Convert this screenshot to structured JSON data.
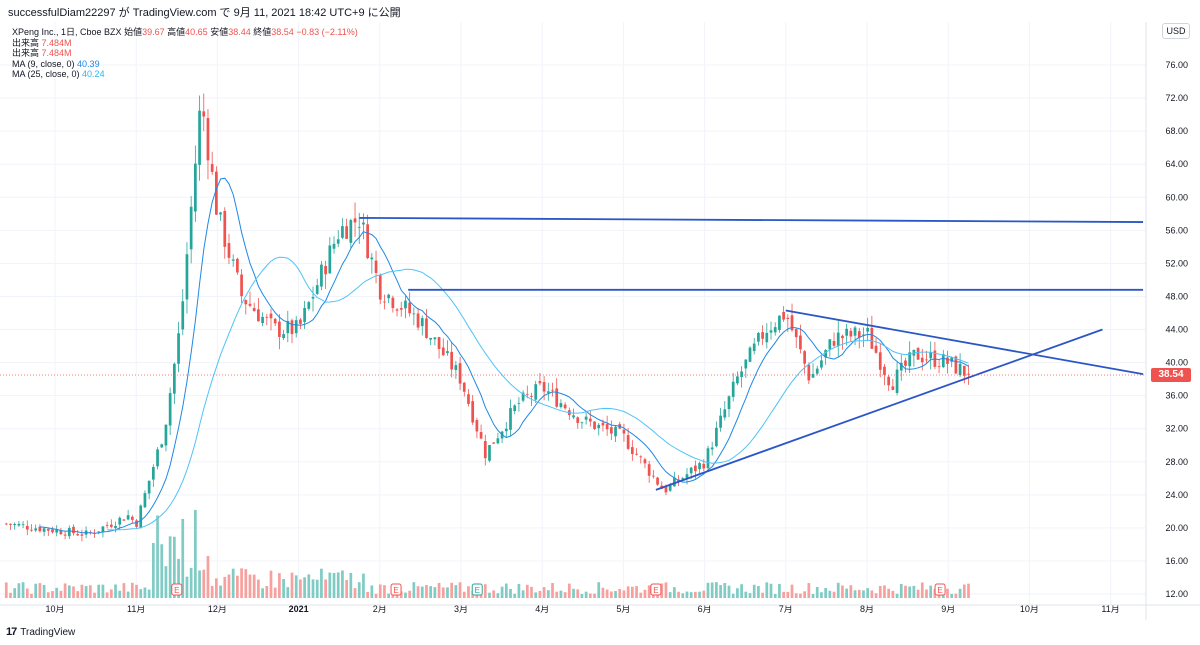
{
  "header": {
    "publish_line": "successfulDiam22297 が TradingView.com で 9月 11, 2021 18:42 UTC+9 に公開"
  },
  "legend": {
    "symbol": "XPeng Inc., 1日, Cboe BZX",
    "open_label": "始値",
    "open": "39.67",
    "high_label": "高値",
    "high": "40.65",
    "low_label": "安値",
    "low": "38.44",
    "close_label": "終値",
    "close": "38.54",
    "change": "−0.83 (−2.11%)",
    "volume_label_1": "出来高",
    "volume_1": "7.484M",
    "volume_label_2": "出来高",
    "volume_2": "7.484M",
    "ma9_label": "MA (9, close, 0)",
    "ma9_value": "40.39",
    "ma25_label": "MA (25, close, 0)",
    "ma25_value": "40.24"
  },
  "currency": "USD",
  "last_price_tag": "38.54",
  "footer": {
    "logo_mark": "17",
    "logo_text": "TradingView"
  },
  "colors": {
    "up": "#26a69a",
    "down": "#ef5350",
    "up_vol": "#80cbc4",
    "down_vol": "#f7a19f",
    "ma9": "#1e88e5",
    "ma25": "#4fc3f7",
    "trendline": "#2a56c6",
    "grid": "#f0f3fa"
  },
  "chart_data": {
    "type": "candlestick",
    "symbol": "XPeng Inc.",
    "interval": "1日",
    "exchange": "Cboe BZX",
    "y_axis_ticks": [
      "76.00",
      "72.00",
      "68.00",
      "64.00",
      "60.00",
      "56.00",
      "52.00",
      "48.00",
      "44.00",
      "40.00",
      "36.00",
      "32.00",
      "28.00",
      "24.00",
      "20.00",
      "16.00",
      "12.00"
    ],
    "ylim": [
      11.5,
      78
    ],
    "x_axis_ticks": [
      "10月",
      "11月",
      "12月",
      "2021",
      "2月",
      "3月",
      "4月",
      "5月",
      "6月",
      "7月",
      "8月",
      "9月",
      "10月",
      "11月"
    ],
    "last_price": 38.54,
    "series": [
      {
        "name": "MA (9, close, 0)",
        "color": "ma9"
      },
      {
        "name": "MA (25, close, 0)",
        "color": "ma25"
      }
    ],
    "price_path_keypoints": [
      {
        "month_index": 0,
        "t": -0.6,
        "price": 20.5
      },
      {
        "month_index": 0,
        "t": 0.4,
        "price": 19.2
      },
      {
        "month_index": 0,
        "t": 0.9,
        "price": 21.5
      },
      {
        "month_index": 1,
        "t": 1.0,
        "price": 20.5
      },
      {
        "month_index": 1,
        "t": 1.35,
        "price": 32.0
      },
      {
        "month_index": 1,
        "t": 1.55,
        "price": 45.0
      },
      {
        "month_index": 1,
        "t": 1.8,
        "price": 72.0
      },
      {
        "month_index": 2,
        "t": 2.0,
        "price": 58.0
      },
      {
        "month_index": 2,
        "t": 2.3,
        "price": 48.0
      },
      {
        "month_index": 2,
        "t": 2.7,
        "price": 44.0
      },
      {
        "month_index": 3,
        "t": 3.0,
        "price": 44.0
      },
      {
        "month_index": 3,
        "t": 3.5,
        "price": 56.0
      },
      {
        "month_index": 3,
        "t": 3.75,
        "price": 57.5
      },
      {
        "month_index": 4,
        "t": 4.0,
        "price": 49.0
      },
      {
        "month_index": 4,
        "t": 4.5,
        "price": 45.0
      },
      {
        "month_index": 5,
        "t": 5.0,
        "price": 38.0
      },
      {
        "month_index": 5,
        "t": 5.3,
        "price": 29.0
      },
      {
        "month_index": 5,
        "t": 5.7,
        "price": 35.0
      },
      {
        "month_index": 6,
        "t": 6.0,
        "price": 37.0
      },
      {
        "month_index": 6,
        "t": 6.5,
        "price": 33.0
      },
      {
        "month_index": 7,
        "t": 7.0,
        "price": 31.0
      },
      {
        "month_index": 7,
        "t": 7.5,
        "price": 24.5
      },
      {
        "month_index": 8,
        "t": 8.0,
        "price": 28.0
      },
      {
        "month_index": 8,
        "t": 8.4,
        "price": 38.0
      },
      {
        "month_index": 8,
        "t": 8.75,
        "price": 44.0
      },
      {
        "month_index": 9,
        "t": 9.0,
        "price": 46.0
      },
      {
        "month_index": 9,
        "t": 9.3,
        "price": 38.0
      },
      {
        "month_index": 9,
        "t": 9.6,
        "price": 43.0
      },
      {
        "month_index": 10,
        "t": 10.0,
        "price": 43.5
      },
      {
        "month_index": 10,
        "t": 10.3,
        "price": 37.5
      },
      {
        "month_index": 10,
        "t": 10.6,
        "price": 41.0
      },
      {
        "month_index": 11,
        "t": 11.0,
        "price": 40.0
      },
      {
        "month_index": 11,
        "t": 11.25,
        "price": 38.54
      }
    ],
    "trendlines": [
      {
        "name": "resistance-upper",
        "from": {
          "t": 3.75,
          "price": 57.5
        },
        "to": {
          "t": 13.4,
          "price": 57.0
        }
      },
      {
        "name": "resistance-lower",
        "from": {
          "t": 4.35,
          "price": 48.8
        },
        "to": {
          "t": 13.4,
          "price": 48.8
        }
      },
      {
        "name": "triangle-top",
        "from": {
          "t": 9.0,
          "price": 46.3
        },
        "to": {
          "t": 13.4,
          "price": 38.6
        }
      },
      {
        "name": "triangle-bottom",
        "from": {
          "t": 7.4,
          "price": 24.6
        },
        "to": {
          "t": 12.9,
          "price": 44.0
        }
      }
    ],
    "earnings_markers_t": [
      1.5,
      4.2,
      7.4,
      10.9
    ],
    "dividend_markers_t": [
      5.2
    ]
  }
}
